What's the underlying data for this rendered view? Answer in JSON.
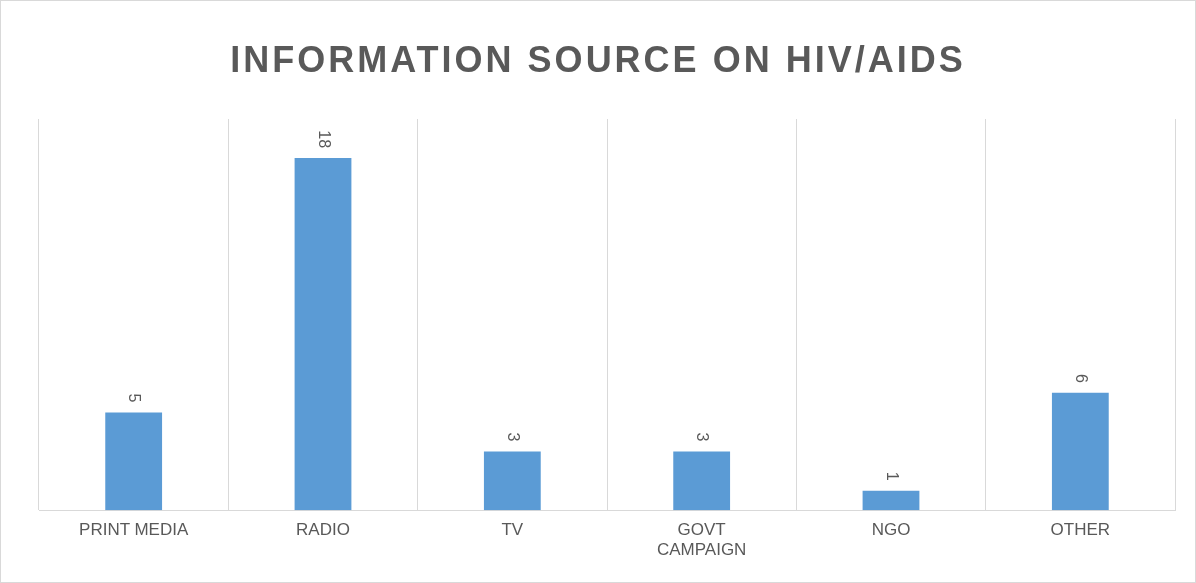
{
  "chart_data": {
    "type": "bar",
    "title": "INFORMATION SOURCE ON HIV/AIDS",
    "categories": [
      "PRINT MEDIA",
      "RADIO",
      "TV",
      "GOVT CAMPAIGN",
      "NGO",
      "OTHER"
    ],
    "values": [
      5,
      18,
      3,
      3,
      1,
      6
    ],
    "color": "#5b9bd5",
    "data_labels": true,
    "grid": "x",
    "legend": false
  }
}
